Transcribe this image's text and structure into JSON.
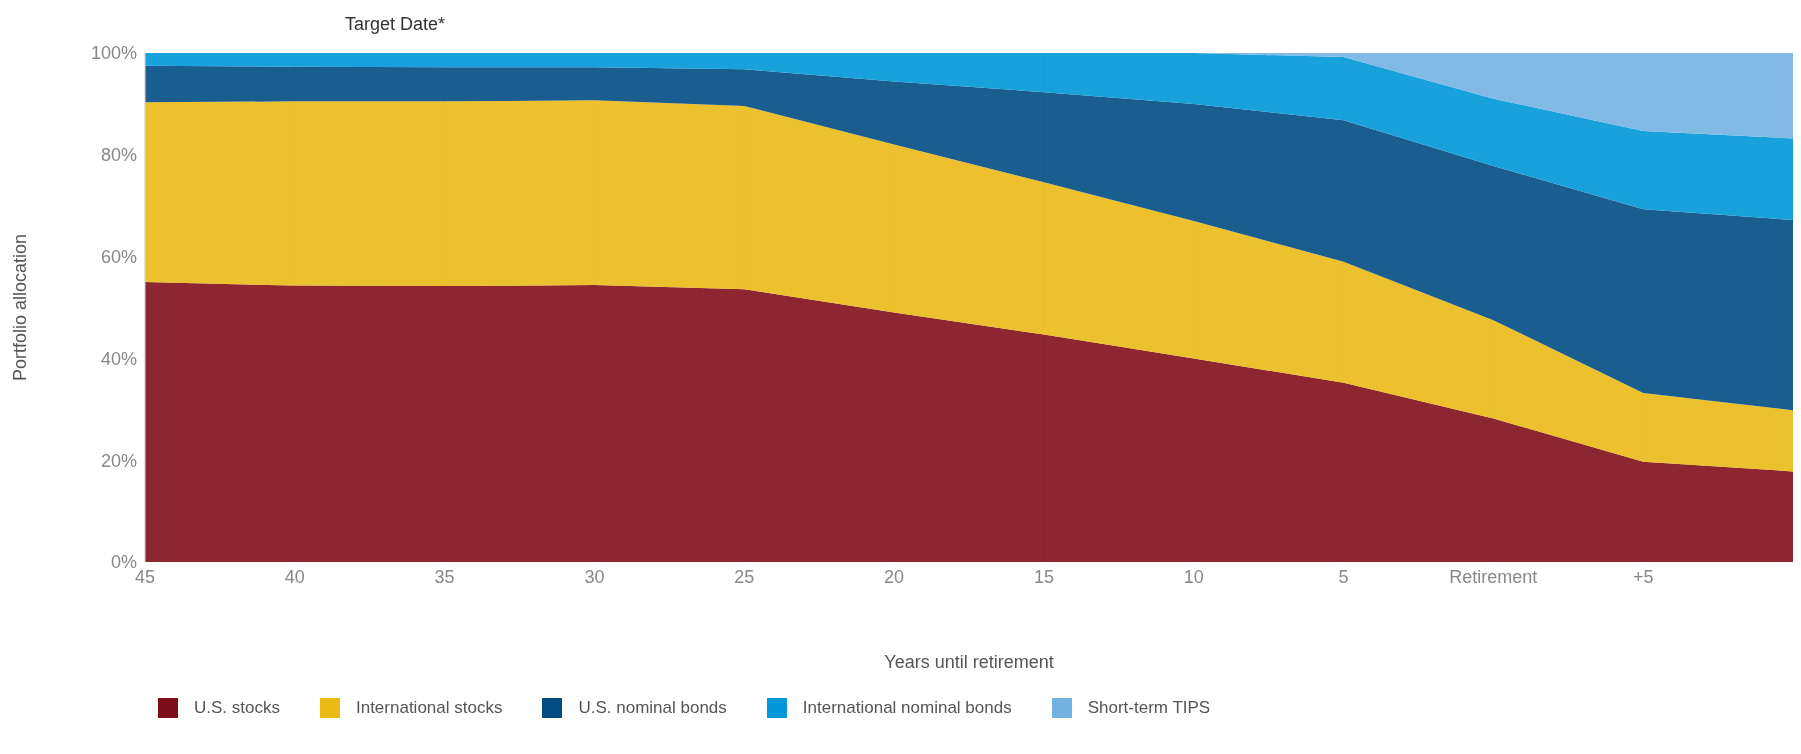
{
  "chart_data": {
    "type": "area",
    "stacked": true,
    "title": "Target Date*",
    "xlabel": "Years until retirement",
    "ylabel": "Portfolio allocation",
    "categories": [
      "45",
      "40",
      "35",
      "30",
      "25",
      "20",
      "15",
      "10",
      "5",
      "Retirement",
      "+5",
      null
    ],
    "ylim": [
      0,
      100
    ],
    "yticks": [
      {
        "value": 0,
        "label": "0%"
      },
      {
        "value": 20,
        "label": "20%"
      },
      {
        "value": 40,
        "label": "40%"
      },
      {
        "value": 60,
        "label": "60%"
      },
      {
        "value": 80,
        "label": "80%"
      },
      {
        "value": 100,
        "label": "100%"
      }
    ],
    "grid": "x",
    "legend": "bottom",
    "series": [
      {
        "name": "U.S. stocks",
        "color": "#7f0e1b",
        "values": [
          55,
          54.3,
          54.2,
          54.4,
          53.6,
          49,
          44.7,
          40,
          35.2,
          28.2,
          19.7,
          17.8
        ]
      },
      {
        "name": "International stocks",
        "color": "#ebba16",
        "values": [
          35.3,
          36.2,
          36.3,
          36.3,
          36,
          33,
          29.9,
          27,
          23.8,
          19.3,
          13.5,
          12
        ]
      },
      {
        "name": "U.S. nominal bonds",
        "color": "#004c83",
        "values": [
          7.2,
          6.8,
          6.7,
          6.5,
          7.2,
          12.4,
          17.7,
          23,
          27.8,
          30.3,
          36.1,
          37.4
        ]
      },
      {
        "name": "International nominal bonds",
        "color": "#0097d8",
        "values": [
          2.5,
          2.7,
          2.8,
          2.8,
          3.2,
          5.6,
          7.7,
          10,
          12.4,
          13.2,
          15.4,
          16
        ]
      },
      {
        "name": "Short-term TIPS",
        "color": "#72b2e2",
        "values": [
          0,
          0,
          0,
          0,
          0,
          0,
          0,
          0,
          0.8,
          9,
          15.3,
          16.8
        ]
      }
    ]
  }
}
